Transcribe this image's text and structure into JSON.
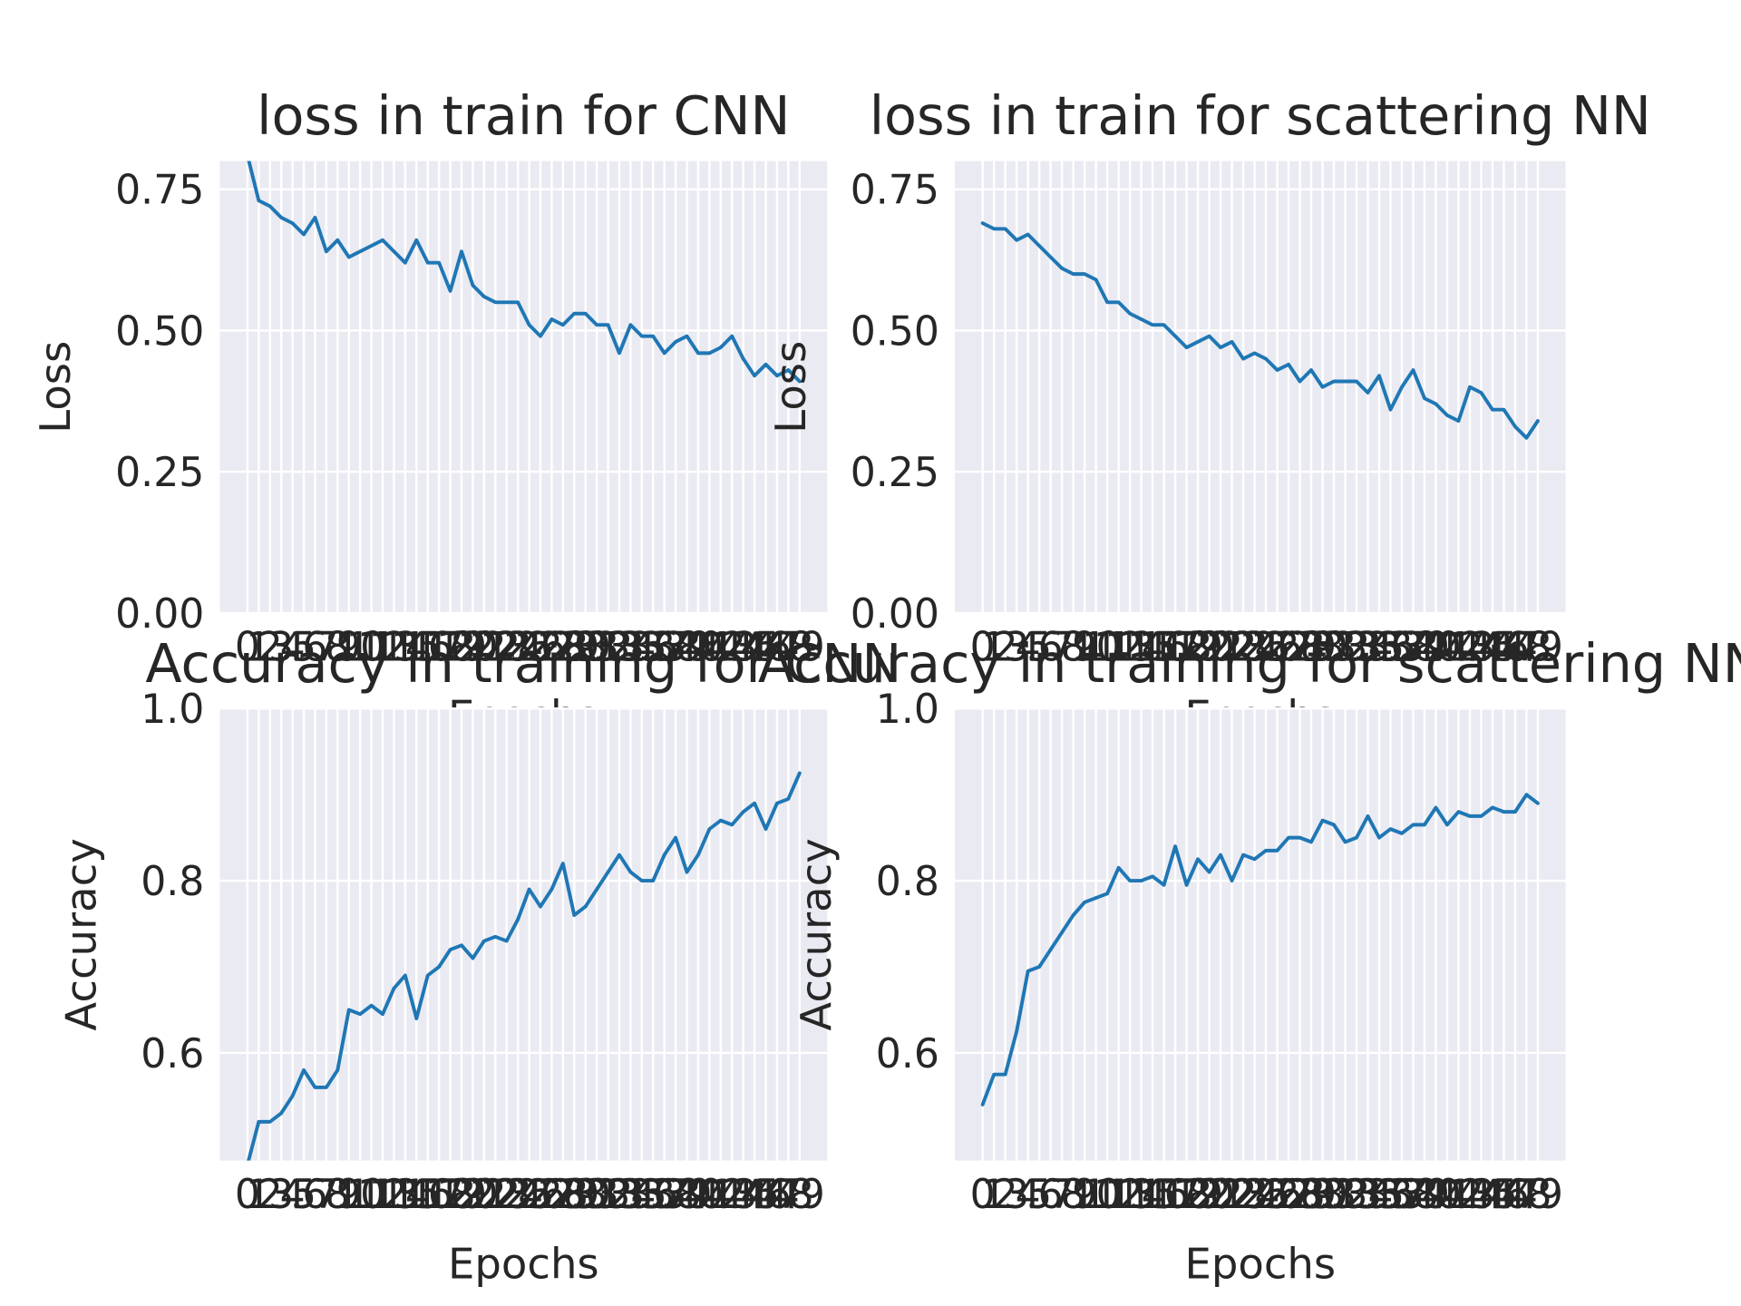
{
  "chart_data": [
    {
      "type": "line",
      "title": "loss in train for CNN",
      "xlabel": "Epochs",
      "ylabel": "Loss",
      "grid": true,
      "x": [
        0,
        1,
        2,
        3,
        4,
        5,
        6,
        7,
        8,
        9,
        10,
        11,
        12,
        13,
        14,
        15,
        16,
        17,
        18,
        19,
        20,
        21,
        22,
        23,
        24,
        25,
        26,
        27,
        28,
        29,
        30,
        31,
        32,
        33,
        34,
        35,
        36,
        37,
        38,
        39,
        40,
        41,
        42,
        43,
        44,
        45,
        46,
        47,
        48,
        49
      ],
      "series": [
        {
          "color": "#1f77b4",
          "values": [
            0.81,
            0.73,
            0.72,
            0.7,
            0.69,
            0.67,
            0.7,
            0.64,
            0.66,
            0.63,
            0.64,
            0.65,
            0.66,
            0.64,
            0.62,
            0.66,
            0.62,
            0.62,
            0.57,
            0.64,
            0.58,
            0.56,
            0.55,
            0.55,
            0.55,
            0.51,
            0.49,
            0.52,
            0.51,
            0.53,
            0.53,
            0.51,
            0.51,
            0.46,
            0.51,
            0.49,
            0.49,
            0.46,
            0.48,
            0.49,
            0.46,
            0.46,
            0.47,
            0.49,
            0.45,
            0.42,
            0.44,
            0.42,
            0.43,
            0.41
          ]
        }
      ],
      "xlim": [
        -2.45,
        51.45
      ],
      "xticks": [
        0,
        1,
        2,
        3,
        4,
        5,
        6,
        7,
        8,
        9,
        10,
        11,
        12,
        13,
        14,
        15,
        16,
        17,
        18,
        19,
        20,
        21,
        22,
        23,
        24,
        25,
        26,
        27,
        28,
        29,
        30,
        31,
        32,
        33,
        34,
        35,
        36,
        37,
        38,
        39,
        40,
        41,
        42,
        43,
        44,
        45,
        46,
        47,
        48,
        49
      ],
      "ylim": [
        0,
        0.8
      ],
      "yticks": [
        {
          "value": 0,
          "label": "0.00"
        },
        {
          "value": 0.25,
          "label": "0.25"
        },
        {
          "value": 0.5,
          "label": "0.50"
        },
        {
          "value": 0.75,
          "label": "0.75"
        }
      ]
    },
    {
      "type": "line",
      "title": "loss in train for scattering NN",
      "xlabel": "Epochs",
      "ylabel": "Loss",
      "grid": true,
      "x": [
        0,
        1,
        2,
        3,
        4,
        5,
        6,
        7,
        8,
        9,
        10,
        11,
        12,
        13,
        14,
        15,
        16,
        17,
        18,
        19,
        20,
        21,
        22,
        23,
        24,
        25,
        26,
        27,
        28,
        29,
        30,
        31,
        32,
        33,
        34,
        35,
        36,
        37,
        38,
        39,
        40,
        41,
        42,
        43,
        44,
        45,
        46,
        47,
        48,
        49
      ],
      "series": [
        {
          "color": "#1f77b4",
          "values": [
            0.69,
            0.68,
            0.68,
            0.66,
            0.67,
            0.65,
            0.63,
            0.61,
            0.6,
            0.6,
            0.59,
            0.55,
            0.55,
            0.53,
            0.52,
            0.51,
            0.51,
            0.49,
            0.47,
            0.48,
            0.49,
            0.47,
            0.48,
            0.45,
            0.46,
            0.45,
            0.43,
            0.44,
            0.41,
            0.43,
            0.4,
            0.41,
            0.41,
            0.41,
            0.39,
            0.42,
            0.36,
            0.4,
            0.43,
            0.38,
            0.37,
            0.35,
            0.34,
            0.4,
            0.39,
            0.36,
            0.36,
            0.33,
            0.31,
            0.34
          ]
        }
      ],
      "xlim": [
        -2.45,
        51.45
      ],
      "xticks": [
        0,
        1,
        2,
        3,
        4,
        5,
        6,
        7,
        8,
        9,
        10,
        11,
        12,
        13,
        14,
        15,
        16,
        17,
        18,
        19,
        20,
        21,
        22,
        23,
        24,
        25,
        26,
        27,
        28,
        29,
        30,
        31,
        32,
        33,
        34,
        35,
        36,
        37,
        38,
        39,
        40,
        41,
        42,
        43,
        44,
        45,
        46,
        47,
        48,
        49
      ],
      "ylim": [
        0,
        0.8
      ],
      "yticks": [
        {
          "value": 0,
          "label": "0.00"
        },
        {
          "value": 0.25,
          "label": "0.25"
        },
        {
          "value": 0.5,
          "label": "0.50"
        },
        {
          "value": 0.75,
          "label": "0.75"
        }
      ]
    },
    {
      "type": "line",
      "title": "Accuracy in training for CNN",
      "xlabel": "Epochs",
      "ylabel": "Accuracy",
      "grid": true,
      "x": [
        0,
        1,
        2,
        3,
        4,
        5,
        6,
        7,
        8,
        9,
        10,
        11,
        12,
        13,
        14,
        15,
        16,
        17,
        18,
        19,
        20,
        21,
        22,
        23,
        24,
        25,
        26,
        27,
        28,
        29,
        30,
        31,
        32,
        33,
        34,
        35,
        36,
        37,
        38,
        39,
        40,
        41,
        42,
        43,
        44,
        45,
        46,
        47,
        48,
        49
      ],
      "series": [
        {
          "color": "#1f77b4",
          "values": [
            0.47,
            0.52,
            0.52,
            0.53,
            0.55,
            0.58,
            0.56,
            0.56,
            0.58,
            0.65,
            0.645,
            0.655,
            0.645,
            0.675,
            0.69,
            0.64,
            0.69,
            0.7,
            0.72,
            0.725,
            0.71,
            0.73,
            0.735,
            0.73,
            0.755,
            0.79,
            0.77,
            0.79,
            0.82,
            0.76,
            0.77,
            0.79,
            0.81,
            0.83,
            0.81,
            0.8,
            0.8,
            0.83,
            0.85,
            0.81,
            0.83,
            0.86,
            0.87,
            0.865,
            0.88,
            0.89,
            0.86,
            0.89,
            0.895,
            0.925
          ]
        }
      ],
      "xlim": [
        -2.45,
        51.45
      ],
      "xticks": [
        0,
        1,
        2,
        3,
        4,
        5,
        6,
        7,
        8,
        9,
        10,
        11,
        12,
        13,
        14,
        15,
        16,
        17,
        18,
        19,
        20,
        21,
        22,
        23,
        24,
        25,
        26,
        27,
        28,
        29,
        30,
        31,
        32,
        33,
        34,
        35,
        36,
        37,
        38,
        39,
        40,
        41,
        42,
        43,
        44,
        45,
        46,
        47,
        48,
        49
      ],
      "ylim": [
        0.475,
        1.0
      ],
      "yticks": [
        0.6,
        0.8,
        {
          "value": 1.0,
          "label": "1.0"
        }
      ]
    },
    {
      "type": "line",
      "title": "Accuracy in training for scattering NN",
      "xlabel": "Epochs",
      "ylabel": "Accuracy",
      "grid": true,
      "x": [
        0,
        1,
        2,
        3,
        4,
        5,
        6,
        7,
        8,
        9,
        10,
        11,
        12,
        13,
        14,
        15,
        16,
        17,
        18,
        19,
        20,
        21,
        22,
        23,
        24,
        25,
        26,
        27,
        28,
        29,
        30,
        31,
        32,
        33,
        34,
        35,
        36,
        37,
        38,
        39,
        40,
        41,
        42,
        43,
        44,
        45,
        46,
        47,
        48,
        49
      ],
      "series": [
        {
          "color": "#1f77b4",
          "values": [
            0.54,
            0.575,
            0.575,
            0.625,
            0.695,
            0.7,
            0.72,
            0.74,
            0.76,
            0.775,
            0.78,
            0.785,
            0.815,
            0.8,
            0.8,
            0.805,
            0.795,
            0.84,
            0.795,
            0.825,
            0.81,
            0.83,
            0.8,
            0.83,
            0.825,
            0.835,
            0.835,
            0.85,
            0.85,
            0.845,
            0.87,
            0.865,
            0.845,
            0.85,
            0.875,
            0.85,
            0.86,
            0.855,
            0.865,
            0.865,
            0.885,
            0.865,
            0.88,
            0.875,
            0.875,
            0.885,
            0.88,
            0.88,
            0.9,
            0.89
          ]
        }
      ],
      "xlim": [
        -2.45,
        51.45
      ],
      "xticks": [
        0,
        1,
        2,
        3,
        4,
        5,
        6,
        7,
        8,
        9,
        10,
        11,
        12,
        13,
        14,
        15,
        16,
        17,
        18,
        19,
        20,
        21,
        22,
        23,
        24,
        25,
        26,
        27,
        28,
        29,
        30,
        31,
        32,
        33,
        34,
        35,
        36,
        37,
        38,
        39,
        40,
        41,
        42,
        43,
        44,
        45,
        46,
        47,
        48,
        49
      ],
      "ylim": [
        0.475,
        1.0
      ],
      "yticks": [
        0.6,
        0.8,
        {
          "value": 1.0,
          "label": "1.0"
        }
      ]
    }
  ]
}
